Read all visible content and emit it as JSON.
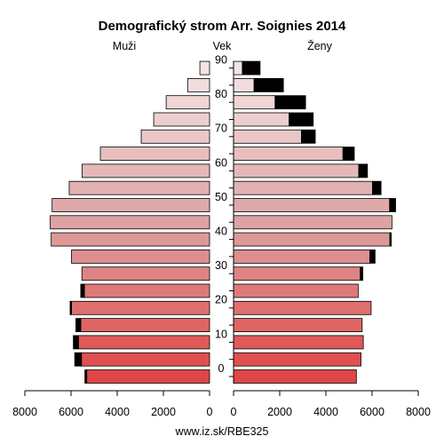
{
  "chart_data": {
    "type": "bar",
    "title": "Demografický strom Arr. Soignies 2014",
    "left_label": "Muži",
    "center_label": "Vek",
    "right_label": "Ženy",
    "footer": "www.iz.sk/RBE325",
    "age_ticks": [
      "0",
      "10",
      "20",
      "30",
      "40",
      "50",
      "60",
      "70",
      "80",
      "90"
    ],
    "x_ticks_left": [
      "8000",
      "6000",
      "4000",
      "2000",
      "0"
    ],
    "x_ticks_right": [
      "0",
      "2000",
      "4000",
      "6000",
      "8000"
    ],
    "xlim": [
      0,
      8000
    ],
    "age_groups": [
      "0-4",
      "5-9",
      "10-14",
      "15-19",
      "20-24",
      "25-29",
      "30-34",
      "35-39",
      "40-44",
      "45-49",
      "50-54",
      "55-59",
      "60-64",
      "65-69",
      "70-74",
      "75-79",
      "80-84",
      "85-89",
      "90+"
    ],
    "series": [
      {
        "name": "Muži",
        "side": "left",
        "values": [
          5320,
          5550,
          5680,
          5580,
          5980,
          5420,
          5530,
          5980,
          6860,
          6900,
          6820,
          6080,
          5520,
          4730,
          2960,
          2420,
          1880,
          950,
          420
        ],
        "surplus": [
          80,
          290,
          220,
          210,
          60,
          160,
          0,
          0,
          0,
          0,
          0,
          0,
          0,
          0,
          0,
          0,
          0,
          0,
          0
        ]
      },
      {
        "name": "Ženy",
        "side": "right",
        "values": [
          5320,
          5520,
          5620,
          5570,
          5960,
          5400,
          5490,
          5900,
          6770,
          6860,
          6760,
          6020,
          5420,
          4740,
          2940,
          2410,
          1800,
          890,
          380
        ],
        "surplus": [
          0,
          0,
          0,
          0,
          0,
          0,
          110,
          230,
          60,
          0,
          260,
          370,
          380,
          490,
          600,
          1040,
          1320,
          1270,
          770
        ]
      }
    ],
    "colors": {
      "light": "#f4e4e4",
      "mid": "#dda2a2",
      "dark": "#e04646",
      "extra": "#000000"
    }
  }
}
